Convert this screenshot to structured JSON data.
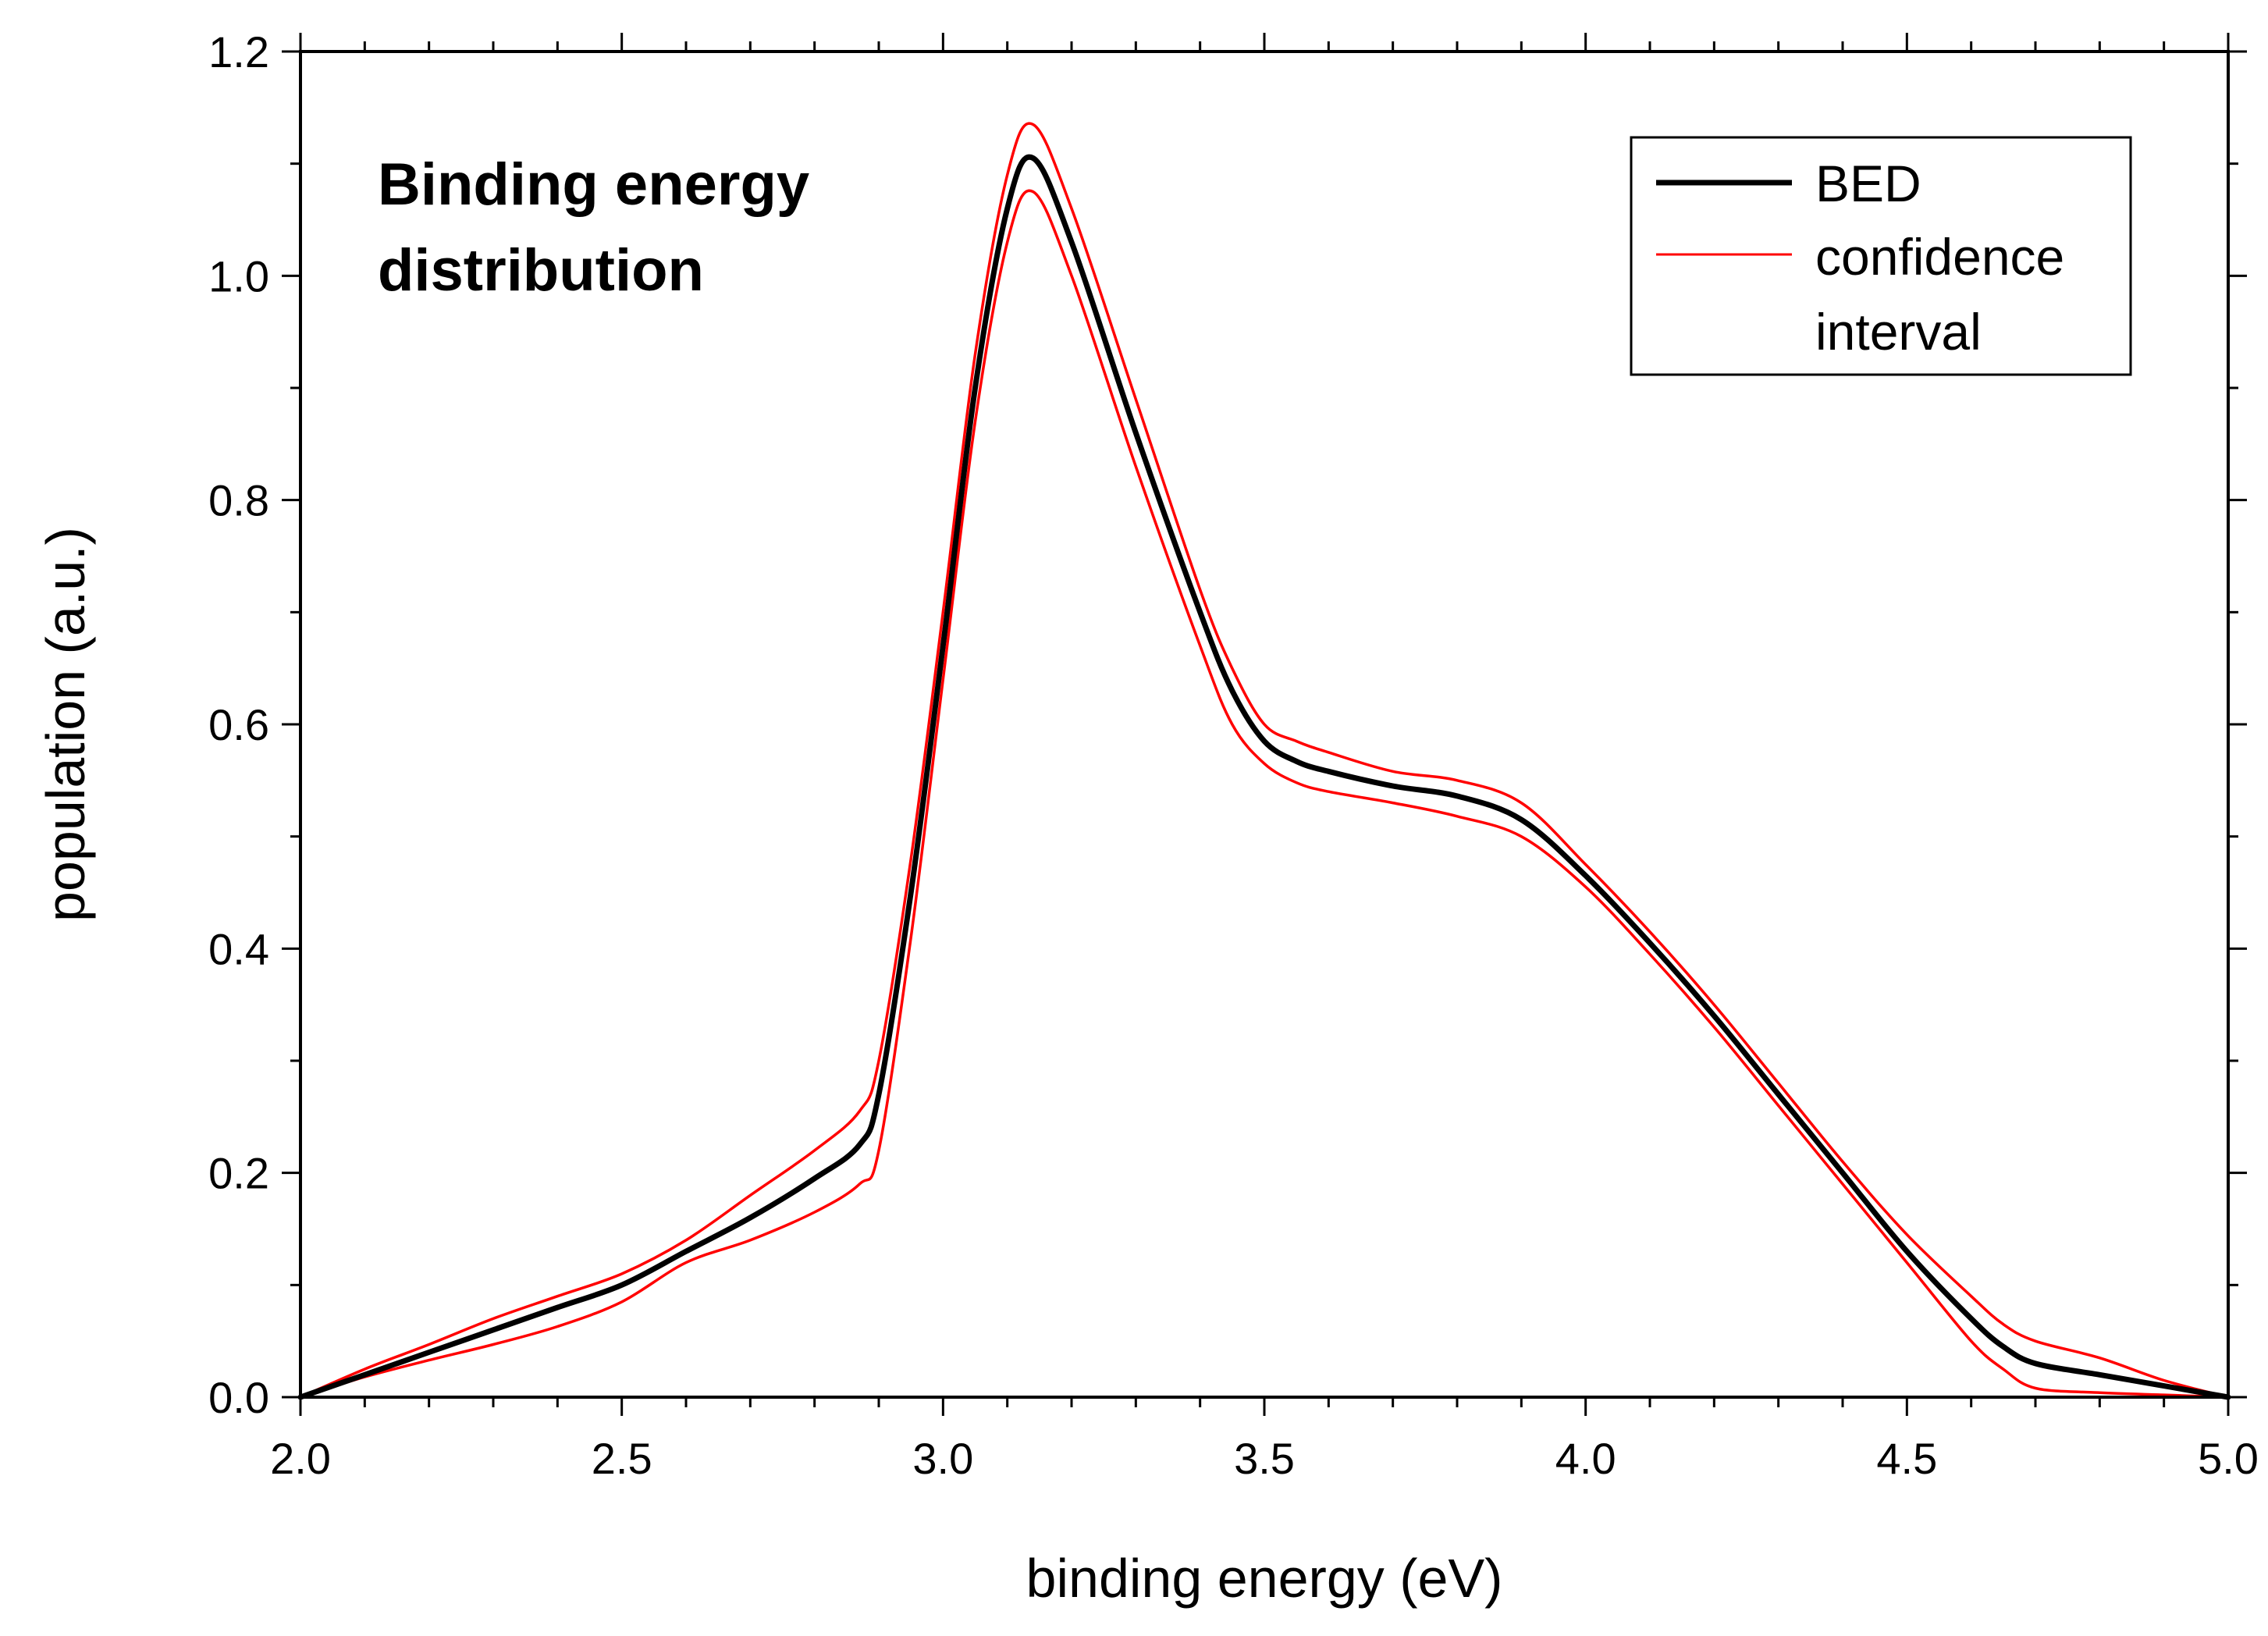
{
  "chart_data": {
    "type": "line",
    "title": "",
    "xlabel": "binding energy (eV)",
    "ylabel": "population (a.u.)",
    "xlim": [
      2.0,
      5.0
    ],
    "ylim": [
      0.0,
      1.2
    ],
    "grid": false,
    "xticks": [
      "2.0",
      "2.5",
      "3.0",
      "3.5",
      "4.0",
      "4.5",
      "5.0"
    ],
    "yticks": [
      "0.0",
      "0.2",
      "0.4",
      "0.6",
      "0.8",
      "1.0",
      "1.2"
    ],
    "annotation": [
      "Binding energy",
      "distribution"
    ],
    "legend": {
      "placement": "top-right",
      "entries": [
        {
          "label": "BED",
          "color": "#000000"
        },
        {
          "label_lines": [
            "confidence",
            "interval"
          ],
          "color": "#ff0000"
        }
      ]
    },
    "series": [
      {
        "name": "BED",
        "color": "#000000",
        "x": [
          2.0,
          2.1,
          2.2,
          2.3,
          2.4,
          2.5,
          2.6,
          2.7,
          2.8,
          2.87,
          2.9,
          2.95,
          3.0,
          3.05,
          3.1,
          3.14,
          3.2,
          3.3,
          3.4,
          3.45,
          3.5,
          3.55,
          3.6,
          3.7,
          3.8,
          3.9,
          4.0,
          4.1,
          4.2,
          4.3,
          4.4,
          4.5,
          4.6,
          4.65,
          4.7,
          4.8,
          4.9,
          5.0
        ],
        "y": [
          0.0,
          0.02,
          0.04,
          0.06,
          0.08,
          0.1,
          0.13,
          0.16,
          0.195,
          0.225,
          0.27,
          0.45,
          0.67,
          0.9,
          1.06,
          1.105,
          1.03,
          0.86,
          0.7,
          0.63,
          0.585,
          0.567,
          0.558,
          0.545,
          0.536,
          0.515,
          0.465,
          0.405,
          0.34,
          0.27,
          0.2,
          0.13,
          0.07,
          0.045,
          0.03,
          0.02,
          0.01,
          0.0
        ]
      },
      {
        "name": "confidence interval (upper)",
        "color": "#ff0000",
        "x": [
          2.0,
          2.1,
          2.2,
          2.3,
          2.4,
          2.5,
          2.6,
          2.7,
          2.8,
          2.87,
          2.9,
          2.95,
          3.0,
          3.05,
          3.1,
          3.14,
          3.2,
          3.3,
          3.4,
          3.45,
          3.5,
          3.55,
          3.6,
          3.7,
          3.8,
          3.9,
          4.0,
          4.1,
          4.2,
          4.3,
          4.4,
          4.5,
          4.6,
          4.65,
          4.7,
          4.8,
          4.9,
          5.0
        ],
        "y": [
          0.0,
          0.025,
          0.047,
          0.07,
          0.09,
          0.11,
          0.14,
          0.18,
          0.22,
          0.255,
          0.3,
          0.48,
          0.7,
          0.93,
          1.09,
          1.135,
          1.06,
          0.89,
          0.72,
          0.65,
          0.6,
          0.585,
          0.575,
          0.558,
          0.55,
          0.53,
          0.475,
          0.415,
          0.35,
          0.28,
          0.21,
          0.145,
          0.09,
          0.065,
          0.05,
          0.035,
          0.015,
          0.0
        ]
      },
      {
        "name": "confidence interval (lower)",
        "color": "#ff0000",
        "x": [
          2.0,
          2.1,
          2.2,
          2.3,
          2.4,
          2.5,
          2.6,
          2.7,
          2.8,
          2.87,
          2.9,
          2.95,
          3.0,
          3.05,
          3.1,
          3.14,
          3.2,
          3.3,
          3.4,
          3.45,
          3.5,
          3.55,
          3.6,
          3.7,
          3.8,
          3.9,
          4.0,
          4.1,
          4.2,
          4.3,
          4.4,
          4.5,
          4.6,
          4.65,
          4.7,
          4.8,
          4.9,
          5.0
        ],
        "y": [
          0.0,
          0.018,
          0.033,
          0.047,
          0.063,
          0.085,
          0.12,
          0.14,
          0.165,
          0.19,
          0.22,
          0.41,
          0.64,
          0.87,
          1.03,
          1.075,
          1.0,
          0.83,
          0.67,
          0.6,
          0.565,
          0.548,
          0.54,
          0.53,
          0.518,
          0.5,
          0.455,
          0.395,
          0.33,
          0.26,
          0.19,
          0.12,
          0.05,
          0.025,
          0.008,
          0.004,
          0.002,
          0.0
        ]
      }
    ]
  }
}
